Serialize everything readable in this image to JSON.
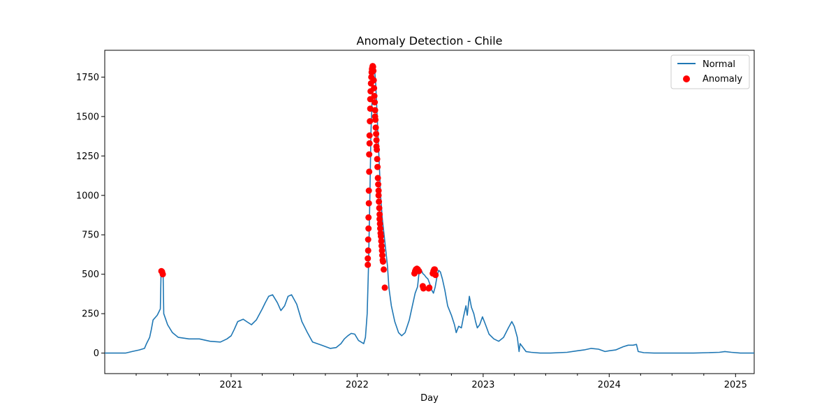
{
  "chart_data": {
    "type": "line",
    "title": "Anomaly Detection - Chile",
    "xlabel": "Day",
    "ylabel": "",
    "legend_position": "top-right",
    "grid": false,
    "x_range": [
      "2020-01-01",
      "2025-02-24"
    ],
    "ylim": [
      -130,
      1920
    ],
    "y_ticks": [
      0,
      250,
      500,
      750,
      1000,
      1250,
      1500,
      1750
    ],
    "x_ticks": [
      {
        "date": "2021-01-01",
        "label": "2021"
      },
      {
        "date": "2022-01-01",
        "label": "2022"
      },
      {
        "date": "2023-01-01",
        "label": "2023"
      },
      {
        "date": "2024-01-01",
        "label": "2024"
      },
      {
        "date": "2025-01-01",
        "label": "2025"
      }
    ],
    "x_minor_ticks": [
      "2020-04-01",
      "2020-07-01",
      "2020-10-01",
      "2021-04-01",
      "2021-07-01",
      "2021-10-01",
      "2022-04-01",
      "2022-07-01",
      "2022-10-01",
      "2023-04-01",
      "2023-07-01",
      "2023-10-01",
      "2024-04-01",
      "2024-07-01",
      "2024-10-01"
    ],
    "series": [
      {
        "name": "Normal",
        "color": "#1f77b4",
        "style": "line",
        "points": [
          [
            "2020-01-01",
            0
          ],
          [
            "2020-03-01",
            0
          ],
          [
            "2020-03-20",
            10
          ],
          [
            "2020-04-10",
            20
          ],
          [
            "2020-04-25",
            30
          ],
          [
            "2020-05-01",
            60
          ],
          [
            "2020-05-10",
            100
          ],
          [
            "2020-05-15",
            150
          ],
          [
            "2020-05-20",
            210
          ],
          [
            "2020-06-01",
            240
          ],
          [
            "2020-06-10",
            280
          ],
          [
            "2020-06-12",
            500
          ],
          [
            "2020-06-15",
            520
          ],
          [
            "2020-06-18",
            495
          ],
          [
            "2020-06-20",
            250
          ],
          [
            "2020-07-01",
            180
          ],
          [
            "2020-07-15",
            130
          ],
          [
            "2020-08-01",
            100
          ],
          [
            "2020-09-01",
            90
          ],
          [
            "2020-10-01",
            90
          ],
          [
            "2020-11-01",
            75
          ],
          [
            "2020-12-01",
            70
          ],
          [
            "2020-12-20",
            90
          ],
          [
            "2021-01-01",
            110
          ],
          [
            "2021-01-10",
            150
          ],
          [
            "2021-01-20",
            200
          ],
          [
            "2021-02-05",
            215
          ],
          [
            "2021-02-15",
            200
          ],
          [
            "2021-03-01",
            180
          ],
          [
            "2021-03-15",
            210
          ],
          [
            "2021-04-01",
            280
          ],
          [
            "2021-04-10",
            320
          ],
          [
            "2021-04-20",
            360
          ],
          [
            "2021-05-01",
            370
          ],
          [
            "2021-05-15",
            320
          ],
          [
            "2021-05-25",
            270
          ],
          [
            "2021-06-05",
            300
          ],
          [
            "2021-06-15",
            360
          ],
          [
            "2021-06-25",
            370
          ],
          [
            "2021-07-10",
            310
          ],
          [
            "2021-07-25",
            200
          ],
          [
            "2021-08-10",
            130
          ],
          [
            "2021-08-25",
            70
          ],
          [
            "2021-09-20",
            50
          ],
          [
            "2021-10-15",
            30
          ],
          [
            "2021-11-01",
            35
          ],
          [
            "2021-11-15",
            60
          ],
          [
            "2021-11-25",
            90
          ],
          [
            "2021-12-05",
            110
          ],
          [
            "2021-12-15",
            125
          ],
          [
            "2021-12-25",
            120
          ],
          [
            "2022-01-05",
            80
          ],
          [
            "2022-01-20",
            60
          ],
          [
            "2022-01-25",
            100
          ],
          [
            "2022-01-30",
            250
          ],
          [
            "2022-02-03",
            550
          ],
          [
            "2022-02-07",
            1000
          ],
          [
            "2022-02-10",
            1400
          ],
          [
            "2022-02-14",
            1650
          ],
          [
            "2022-02-17",
            1780
          ],
          [
            "2022-02-20",
            1820
          ],
          [
            "2022-02-24",
            1700
          ],
          [
            "2022-02-27",
            1550
          ],
          [
            "2022-03-02",
            1400
          ],
          [
            "2022-03-06",
            1200
          ],
          [
            "2022-03-10",
            1000
          ],
          [
            "2022-03-15",
            850
          ],
          [
            "2022-03-20",
            750
          ],
          [
            "2022-03-25",
            650
          ],
          [
            "2022-03-30",
            550
          ],
          [
            "2022-04-03",
            415
          ],
          [
            "2022-04-10",
            300
          ],
          [
            "2022-04-20",
            200
          ],
          [
            "2022-05-01",
            130
          ],
          [
            "2022-05-10",
            110
          ],
          [
            "2022-05-20",
            130
          ],
          [
            "2022-06-01",
            210
          ],
          [
            "2022-06-10",
            300
          ],
          [
            "2022-06-18",
            380
          ],
          [
            "2022-06-25",
            420
          ],
          [
            "2022-06-30",
            525
          ],
          [
            "2022-07-05",
            530
          ],
          [
            "2022-07-10",
            505
          ],
          [
            "2022-07-15",
            495
          ],
          [
            "2022-07-20",
            480
          ],
          [
            "2022-07-25",
            470
          ],
          [
            "2022-08-01",
            430
          ],
          [
            "2022-08-05",
            400
          ],
          [
            "2022-08-10",
            380
          ],
          [
            "2022-08-15",
            420
          ],
          [
            "2022-08-20",
            480
          ],
          [
            "2022-08-25",
            525
          ],
          [
            "2022-08-30",
            515
          ],
          [
            "2022-09-05",
            470
          ],
          [
            "2022-09-12",
            400
          ],
          [
            "2022-09-20",
            300
          ],
          [
            "2022-10-01",
            240
          ],
          [
            "2022-10-10",
            180
          ],
          [
            "2022-10-15",
            130
          ],
          [
            "2022-10-22",
            170
          ],
          [
            "2022-10-30",
            160
          ],
          [
            "2022-11-05",
            230
          ],
          [
            "2022-11-12",
            300
          ],
          [
            "2022-11-16",
            240
          ],
          [
            "2022-11-22",
            360
          ],
          [
            "2022-11-28",
            290
          ],
          [
            "2022-12-05",
            250
          ],
          [
            "2022-12-10",
            200
          ],
          [
            "2022-12-15",
            160
          ],
          [
            "2022-12-22",
            180
          ],
          [
            "2022-12-30",
            230
          ],
          [
            "2023-01-08",
            180
          ],
          [
            "2023-01-18",
            120
          ],
          [
            "2023-02-01",
            90
          ],
          [
            "2023-02-15",
            75
          ],
          [
            "2023-03-01",
            100
          ],
          [
            "2023-03-15",
            160
          ],
          [
            "2023-03-25",
            200
          ],
          [
            "2023-04-01",
            170
          ],
          [
            "2023-04-10",
            100
          ],
          [
            "2023-04-15",
            10
          ],
          [
            "2023-04-18",
            60
          ],
          [
            "2023-04-25",
            40
          ],
          [
            "2023-05-05",
            10
          ],
          [
            "2023-05-20",
            5
          ],
          [
            "2023-06-15",
            0
          ],
          [
            "2023-07-15",
            0
          ],
          [
            "2023-09-01",
            5
          ],
          [
            "2023-10-01",
            15
          ],
          [
            "2023-10-20",
            20
          ],
          [
            "2023-11-10",
            30
          ],
          [
            "2023-12-01",
            25
          ],
          [
            "2023-12-20",
            10
          ],
          [
            "2024-01-01",
            15
          ],
          [
            "2024-01-20",
            20
          ],
          [
            "2024-02-10",
            40
          ],
          [
            "2024-02-25",
            50
          ],
          [
            "2024-03-10",
            50
          ],
          [
            "2024-03-20",
            55
          ],
          [
            "2024-03-25",
            10
          ],
          [
            "2024-04-10",
            3
          ],
          [
            "2024-05-10",
            0
          ],
          [
            "2024-07-01",
            0
          ],
          [
            "2024-09-01",
            0
          ],
          [
            "2024-10-15",
            3
          ],
          [
            "2024-11-15",
            5
          ],
          [
            "2024-12-01",
            10
          ],
          [
            "2024-12-20",
            5
          ],
          [
            "2025-01-15",
            0
          ],
          [
            "2025-02-24",
            0
          ]
        ]
      },
      {
        "name": "Anomaly",
        "color": "#ff0000",
        "style": "scatter",
        "points": [
          [
            "2020-06-13",
            520
          ],
          [
            "2020-06-15",
            515
          ],
          [
            "2020-06-17",
            500
          ],
          [
            "2022-02-01",
            560
          ],
          [
            "2022-02-01",
            600
          ],
          [
            "2022-02-02",
            650
          ],
          [
            "2022-02-02",
            720
          ],
          [
            "2022-02-03",
            790
          ],
          [
            "2022-02-03",
            860
          ],
          [
            "2022-02-04",
            950
          ],
          [
            "2022-02-04",
            1030
          ],
          [
            "2022-02-05",
            1150
          ],
          [
            "2022-02-05",
            1260
          ],
          [
            "2022-02-06",
            1330
          ],
          [
            "2022-02-06",
            1380
          ],
          [
            "2022-02-07",
            1470
          ],
          [
            "2022-02-08",
            1550
          ],
          [
            "2022-02-08",
            1610
          ],
          [
            "2022-02-09",
            1660
          ],
          [
            "2022-02-10",
            1710
          ],
          [
            "2022-02-11",
            1750
          ],
          [
            "2022-02-12",
            1780
          ],
          [
            "2022-02-13",
            1800
          ],
          [
            "2022-02-14",
            1810
          ],
          [
            "2022-02-15",
            1820
          ],
          [
            "2022-02-16",
            1815
          ],
          [
            "2022-02-17",
            1790
          ],
          [
            "2022-02-18",
            1730
          ],
          [
            "2022-02-19",
            1680
          ],
          [
            "2022-02-20",
            1630
          ],
          [
            "2022-02-21",
            1590
          ],
          [
            "2022-02-22",
            1540
          ],
          [
            "2022-02-22",
            1500
          ],
          [
            "2022-02-23",
            1480
          ],
          [
            "2022-02-24",
            1430
          ],
          [
            "2022-02-25",
            1390
          ],
          [
            "2022-02-26",
            1350
          ],
          [
            "2022-02-26",
            1310
          ],
          [
            "2022-02-27",
            1290
          ],
          [
            "2022-02-28",
            1230
          ],
          [
            "2022-03-01",
            1180
          ],
          [
            "2022-03-02",
            1110
          ],
          [
            "2022-03-03",
            1070
          ],
          [
            "2022-03-04",
            1030
          ],
          [
            "2022-03-04",
            1000
          ],
          [
            "2022-03-05",
            960
          ],
          [
            "2022-03-06",
            920
          ],
          [
            "2022-03-07",
            880
          ],
          [
            "2022-03-07",
            850
          ],
          [
            "2022-03-08",
            820
          ],
          [
            "2022-03-09",
            790
          ],
          [
            "2022-03-10",
            760
          ],
          [
            "2022-03-11",
            740
          ],
          [
            "2022-03-12",
            710
          ],
          [
            "2022-03-13",
            680
          ],
          [
            "2022-03-14",
            650
          ],
          [
            "2022-03-15",
            620
          ],
          [
            "2022-03-16",
            590
          ],
          [
            "2022-03-17",
            580
          ],
          [
            "2022-03-19",
            530
          ],
          [
            "2022-03-22",
            415
          ],
          [
            "2022-06-16",
            505
          ],
          [
            "2022-06-18",
            520
          ],
          [
            "2022-06-20",
            530
          ],
          [
            "2022-06-23",
            535
          ],
          [
            "2022-06-26",
            530
          ],
          [
            "2022-06-29",
            520
          ],
          [
            "2022-07-10",
            425
          ],
          [
            "2022-07-12",
            410
          ],
          [
            "2022-07-27",
            410
          ],
          [
            "2022-07-29",
            415
          ],
          [
            "2022-08-08",
            505
          ],
          [
            "2022-08-10",
            520
          ],
          [
            "2022-08-12",
            530
          ],
          [
            "2022-08-14",
            530
          ],
          [
            "2022-08-16",
            495
          ]
        ]
      }
    ]
  }
}
